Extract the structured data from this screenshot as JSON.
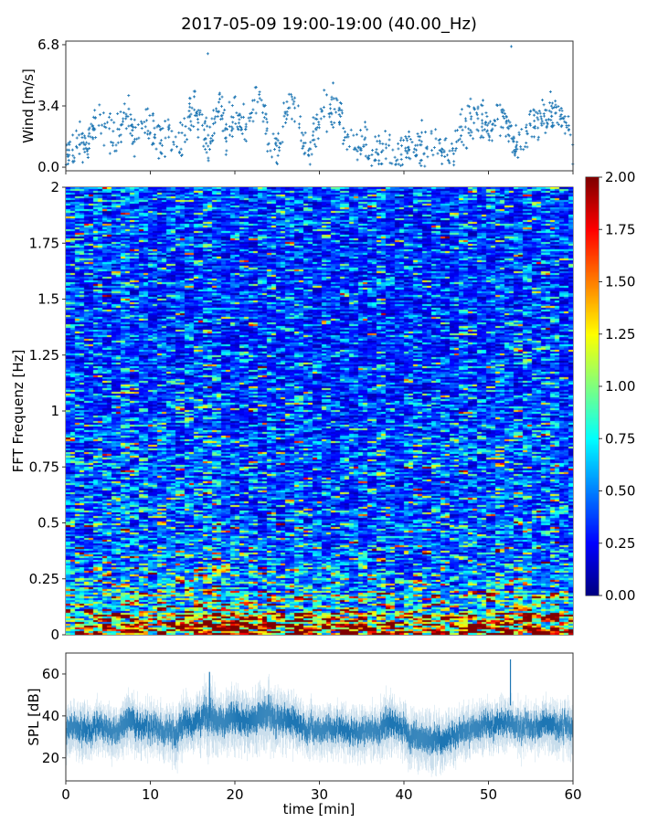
{
  "title": "2017-05-09 19:00-19:00 (40.00_Hz)",
  "chart_data": [
    {
      "type": "scatter",
      "panel": "wind",
      "ylabel": "Wind [m/s]",
      "yticks": [
        0.0,
        3.4,
        6.8
      ],
      "ylim": [
        -0.2,
        7.0
      ],
      "xlim": [
        0,
        60
      ],
      "color": "#1f77b4",
      "marker": "+",
      "x_minutes": [
        0,
        1,
        2,
        3,
        4,
        5,
        6,
        7,
        8,
        9,
        10,
        11,
        12,
        13,
        14,
        15,
        16,
        17,
        18,
        19,
        20,
        21,
        22,
        23,
        24,
        25,
        26,
        27,
        28,
        29,
        30,
        31,
        32,
        33,
        34,
        35,
        36,
        37,
        38,
        39,
        40,
        41,
        42,
        43,
        44,
        45,
        46,
        47,
        48,
        49,
        50,
        51,
        52,
        53,
        54,
        55,
        56,
        57,
        58,
        59,
        60
      ],
      "wind_mean": [
        1.1,
        1.1,
        1.2,
        1.6,
        2.5,
        2.6,
        1.5,
        3.0,
        2.0,
        1.8,
        2.3,
        1.5,
        2.0,
        0.9,
        2.0,
        3.2,
        2.5,
        1.0,
        3.5,
        2.0,
        3.0,
        2.0,
        3.0,
        4.0,
        1.5,
        1.0,
        3.0,
        3.8,
        1.5,
        1.0,
        2.5,
        3.2,
        3.4,
        2.0,
        1.0,
        1.5,
        0.8,
        0.6,
        1.5,
        0.6,
        1.0,
        0.8,
        1.0,
        1.5,
        1.2,
        0.6,
        1.0,
        2.0,
        2.5,
        2.8,
        2.0,
        3.0,
        2.5,
        1.5,
        1.5,
        2.5,
        2.5,
        3.0,
        3.0,
        2.5,
        1.5
      ],
      "peaks": [
        {
          "x": 16.8,
          "y": 6.3
        },
        {
          "x": 52.7,
          "y": 6.7
        }
      ]
    },
    {
      "type": "heatmap",
      "panel": "spectrogram",
      "ylabel": "FFT Frequenz [Hz]",
      "yticks": [
        "0",
        "0.25",
        "0.5",
        "0.75",
        "1",
        "1.25",
        "1.5",
        "1.75",
        "2"
      ],
      "ylim": [
        0,
        2
      ],
      "xlim": [
        0,
        60
      ],
      "colormap": "jet",
      "time_bins_min": [
        0,
        5,
        10,
        15,
        20,
        25,
        30,
        35,
        40,
        45,
        50,
        55
      ],
      "freq_bins_hz": [
        0.0,
        0.1,
        0.2,
        0.3,
        0.4,
        0.5,
        0.6,
        0.7,
        0.8,
        0.9,
        1.0,
        1.1,
        1.2,
        1.3,
        1.4,
        1.5,
        1.6,
        1.7,
        1.8,
        1.9
      ],
      "values": [
        [
          1.2,
          1.2,
          1.3,
          1.6,
          1.6,
          1.4,
          1.3,
          1.1,
          1.2,
          1.1,
          1.6,
          1.3
        ],
        [
          0.75,
          0.7,
          0.8,
          0.9,
          0.85,
          0.75,
          0.7,
          0.65,
          0.7,
          0.65,
          0.85,
          0.7
        ],
        [
          0.6,
          0.55,
          0.6,
          0.65,
          0.6,
          0.55,
          0.55,
          0.5,
          0.55,
          0.5,
          0.6,
          0.55
        ],
        [
          0.5,
          0.45,
          0.5,
          0.55,
          0.5,
          0.45,
          0.45,
          0.45,
          0.45,
          0.4,
          0.5,
          0.45
        ],
        [
          0.45,
          0.45,
          0.45,
          0.5,
          0.45,
          0.42,
          0.42,
          0.4,
          0.45,
          0.4,
          0.45,
          0.42
        ],
        [
          0.45,
          0.42,
          0.42,
          0.45,
          0.42,
          0.4,
          0.4,
          0.4,
          0.42,
          0.38,
          0.42,
          0.4
        ],
        [
          0.42,
          0.4,
          0.42,
          0.42,
          0.4,
          0.38,
          0.38,
          0.38,
          0.4,
          0.36,
          0.45,
          0.4
        ],
        [
          0.45,
          0.42,
          0.42,
          0.42,
          0.4,
          0.38,
          0.4,
          0.42,
          0.45,
          0.38,
          0.45,
          0.42
        ],
        [
          0.45,
          0.42,
          0.4,
          0.42,
          0.4,
          0.38,
          0.4,
          0.4,
          0.45,
          0.38,
          0.42,
          0.4
        ],
        [
          0.4,
          0.38,
          0.38,
          0.4,
          0.38,
          0.36,
          0.36,
          0.36,
          0.4,
          0.35,
          0.4,
          0.38
        ],
        [
          0.38,
          0.36,
          0.36,
          0.38,
          0.36,
          0.34,
          0.34,
          0.34,
          0.36,
          0.33,
          0.38,
          0.36
        ],
        [
          0.38,
          0.35,
          0.35,
          0.36,
          0.35,
          0.33,
          0.33,
          0.33,
          0.35,
          0.32,
          0.36,
          0.35
        ],
        [
          0.38,
          0.35,
          0.35,
          0.36,
          0.35,
          0.33,
          0.33,
          0.33,
          0.35,
          0.32,
          0.36,
          0.35
        ],
        [
          0.38,
          0.35,
          0.34,
          0.35,
          0.34,
          0.32,
          0.32,
          0.32,
          0.34,
          0.32,
          0.35,
          0.34
        ],
        [
          0.4,
          0.36,
          0.34,
          0.35,
          0.34,
          0.32,
          0.32,
          0.32,
          0.34,
          0.32,
          0.35,
          0.34
        ],
        [
          0.42,
          0.38,
          0.36,
          0.36,
          0.35,
          0.33,
          0.33,
          0.33,
          0.35,
          0.33,
          0.36,
          0.35
        ],
        [
          0.42,
          0.38,
          0.36,
          0.36,
          0.35,
          0.33,
          0.33,
          0.33,
          0.35,
          0.33,
          0.36,
          0.35
        ],
        [
          0.42,
          0.4,
          0.36,
          0.36,
          0.36,
          0.34,
          0.34,
          0.34,
          0.36,
          0.34,
          0.38,
          0.36
        ],
        [
          0.45,
          0.4,
          0.38,
          0.38,
          0.36,
          0.35,
          0.35,
          0.35,
          0.36,
          0.35,
          0.38,
          0.38
        ],
        [
          0.45,
          0.42,
          0.4,
          0.4,
          0.38,
          0.36,
          0.36,
          0.36,
          0.38,
          0.36,
          0.4,
          0.4
        ]
      ],
      "colorbar": {
        "ticks": [
          "0.00",
          "0.25",
          "0.50",
          "0.75",
          "1.00",
          "1.25",
          "1.50",
          "1.75",
          "2.00"
        ],
        "range": [
          0,
          2
        ]
      }
    },
    {
      "type": "area",
      "panel": "spl",
      "ylabel": "SPL [dB]",
      "xlabel": "time [min]",
      "yticks": [
        20,
        40,
        60
      ],
      "ylim": [
        9,
        70
      ],
      "xlim": [
        0,
        60
      ],
      "xticks": [
        0,
        10,
        20,
        30,
        40,
        50,
        60
      ],
      "color": "#1f77b4",
      "x_minutes": [
        0,
        1,
        2,
        3,
        4,
        5,
        6,
        7,
        8,
        9,
        10,
        11,
        12,
        13,
        14,
        15,
        16,
        17,
        18,
        19,
        20,
        21,
        22,
        23,
        24,
        25,
        26,
        27,
        28,
        29,
        30,
        31,
        32,
        33,
        34,
        35,
        36,
        37,
        38,
        39,
        40,
        41,
        42,
        43,
        44,
        45,
        46,
        47,
        48,
        49,
        50,
        51,
        52,
        53,
        54,
        55,
        56,
        57,
        58,
        59,
        60
      ],
      "spl_mean": [
        35,
        35,
        34,
        33,
        36,
        33,
        32,
        37,
        38,
        35,
        35,
        34,
        33,
        31,
        37,
        36,
        39,
        41,
        37,
        38,
        40,
        37,
        38,
        41,
        42,
        37,
        38,
        38,
        35,
        34,
        33,
        35,
        34,
        33,
        32,
        33,
        34,
        32,
        38,
        35,
        34,
        30,
        30,
        29,
        29,
        30,
        31,
        33,
        34,
        35,
        36,
        36,
        37,
        37,
        34,
        35,
        35,
        37,
        36,
        36,
        34
      ],
      "spl_spread": [
        7,
        7,
        8,
        7,
        7,
        7,
        7,
        8,
        8,
        7,
        7,
        7,
        7,
        8,
        8,
        7,
        8,
        10,
        8,
        8,
        9,
        8,
        8,
        9,
        9,
        8,
        8,
        8,
        7,
        7,
        7,
        7,
        7,
        7,
        7,
        7,
        7,
        7,
        9,
        7,
        7,
        8,
        8,
        8,
        8,
        7,
        7,
        7,
        7,
        7,
        7,
        7,
        7,
        7,
        7,
        7,
        7,
        7,
        7,
        7,
        7
      ],
      "peaks": [
        {
          "x": 17.0,
          "y": 61
        },
        {
          "x": 52.6,
          "y": 67
        }
      ]
    }
  ]
}
